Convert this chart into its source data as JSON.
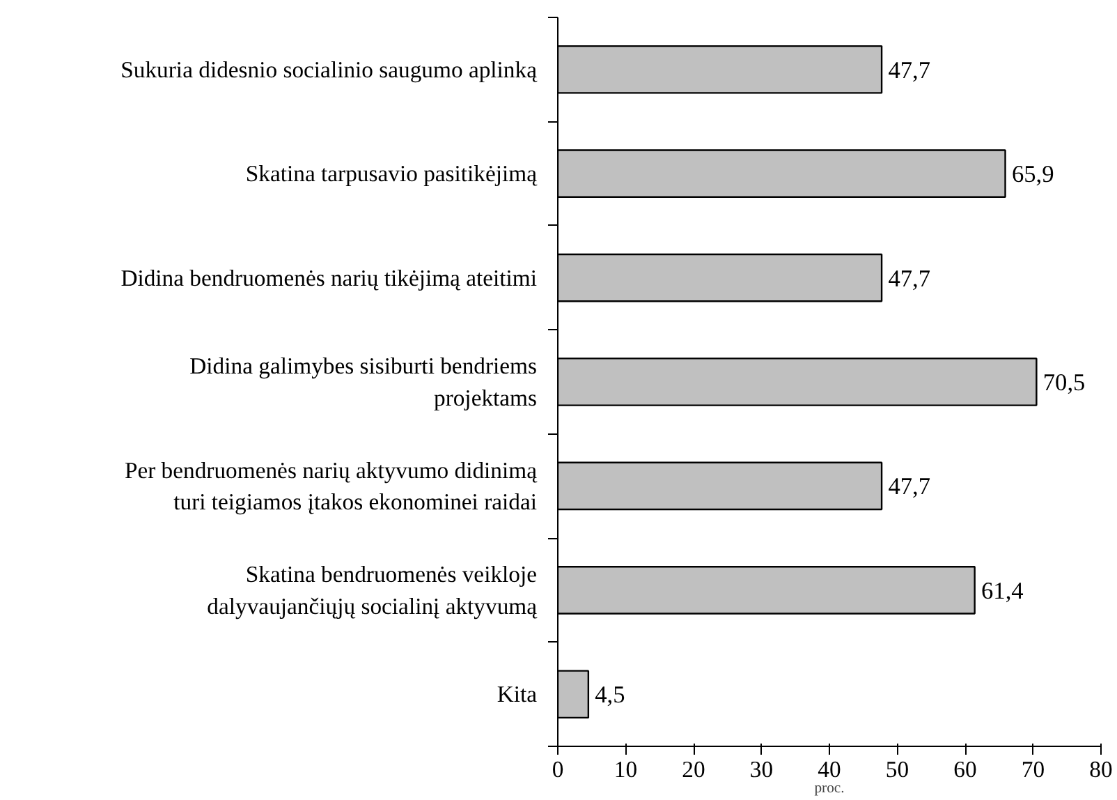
{
  "chart_data": {
    "type": "bar",
    "orientation": "horizontal",
    "categories": [
      "Sukuria didesnio socialinio saugumo aplinką",
      "Skatina tarpusavio pasitikėjimą",
      "Didina bendruomenės narių tikėjimą ateitimi",
      "Didina galimybes sisiburti bendriems\nprojektams",
      "Per bendruomenės narių aktyvumo didinimą\nturi teigiamos įtakos ekonominei raidai",
      "Skatina bendruomenės veikloje\ndalyvaujančiųjų socialinį aktyvumą",
      "Kita"
    ],
    "values": [
      47.7,
      65.9,
      47.7,
      70.5,
      47.7,
      61.4,
      4.5
    ],
    "value_labels": [
      "47,7",
      "65,9",
      "47,7",
      "70,5",
      "47,7",
      "61,4",
      "4,5"
    ],
    "color": "#c0c0c0",
    "xlim": [
      0,
      80
    ],
    "xticks": [
      0,
      10,
      20,
      30,
      40,
      50,
      60,
      70,
      80
    ],
    "xlabel": "proc.",
    "grid": false
  }
}
